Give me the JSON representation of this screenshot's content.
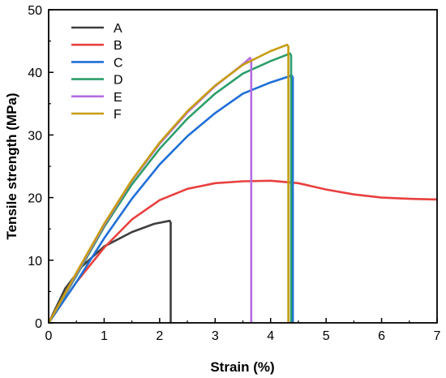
{
  "chart_data": {
    "type": "line",
    "title": "",
    "xlabel": "Strain (%)",
    "ylabel": "Tensile strength (MPa)",
    "xlim": [
      0,
      7
    ],
    "ylim": [
      0,
      50
    ],
    "xticks": [
      0,
      1,
      2,
      3,
      4,
      5,
      6,
      7
    ],
    "yticks": [
      0,
      10,
      20,
      30,
      40,
      50
    ],
    "grid": false,
    "legend_position": "top-left",
    "series": [
      {
        "name": "A",
        "color": "#3f3f3f",
        "x": [
          0,
          0.3,
          0.6,
          1.0,
          1.5,
          1.9,
          2.18,
          2.2,
          2.2
        ],
        "y": [
          0,
          5.5,
          9.0,
          12.2,
          14.5,
          15.8,
          16.3,
          16.0,
          0
        ]
      },
      {
        "name": "B",
        "color": "#e8403f",
        "x": [
          0,
          0.5,
          1.0,
          1.5,
          2.0,
          2.5,
          3.0,
          3.5,
          4.0,
          4.5,
          5.0,
          5.5,
          6.0,
          6.5,
          7.0
        ],
        "y": [
          0,
          6.5,
          12.0,
          16.5,
          19.6,
          21.4,
          22.3,
          22.6,
          22.7,
          22.3,
          21.3,
          20.5,
          20.0,
          19.8,
          19.7
        ]
      },
      {
        "name": "C",
        "color": "#1f6fd6",
        "x": [
          0,
          0.5,
          1.0,
          1.5,
          2.0,
          2.5,
          3.0,
          3.5,
          4.0,
          4.38,
          4.4,
          4.4
        ],
        "y": [
          0,
          6.5,
          13.5,
          19.8,
          25.3,
          29.8,
          33.5,
          36.6,
          38.4,
          39.5,
          39.2,
          0
        ]
      },
      {
        "name": "D",
        "color": "#2c9e6b",
        "x": [
          0,
          0.5,
          1.0,
          1.5,
          2.0,
          2.5,
          3.0,
          3.5,
          4.0,
          4.35,
          4.37,
          4.37
        ],
        "y": [
          0,
          7.5,
          15.3,
          22.1,
          27.8,
          32.6,
          36.6,
          39.8,
          41.8,
          43.0,
          42.7,
          0
        ]
      },
      {
        "name": "E",
        "color": "#b46be0",
        "x": [
          0,
          0.5,
          1.0,
          1.5,
          2.0,
          2.5,
          3.0,
          3.5,
          3.63,
          3.65,
          3.65
        ],
        "y": [
          0,
          7.8,
          15.6,
          22.7,
          28.6,
          33.6,
          37.8,
          41.3,
          42.3,
          42.0,
          0
        ]
      },
      {
        "name": "F",
        "color": "#c79d12",
        "x": [
          0,
          0.5,
          1.0,
          1.5,
          2.0,
          2.5,
          3.0,
          3.5,
          4.0,
          4.3,
          4.32,
          4.32
        ],
        "y": [
          0,
          8.0,
          15.8,
          22.8,
          28.8,
          33.8,
          37.9,
          41.2,
          43.4,
          44.4,
          44.1,
          0
        ]
      }
    ]
  }
}
